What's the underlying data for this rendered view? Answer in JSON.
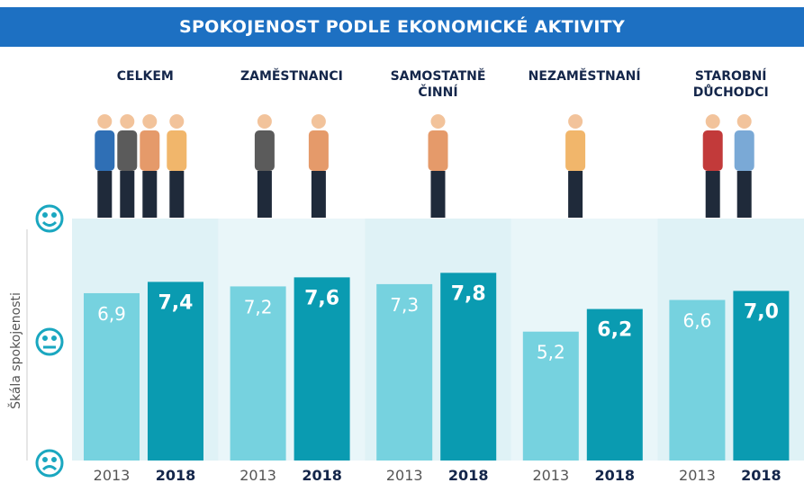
{
  "chart_data": {
    "type": "bar",
    "title": "SPOKOJENOST PODLE EKONOMICKÉ AKTIVITY",
    "y_label": "Škála spokojenosti",
    "categories": [
      "CELKEM",
      "ZAMĚSTNANCI",
      "SAMOSTATNĚ ČINNÍ",
      "NEZAMĚSTNANÍ",
      "STAROBNÍ DŮCHODCI"
    ],
    "series": [
      {
        "name": "2013",
        "color": "#76d2df",
        "values": [
          6.9,
          7.2,
          7.3,
          5.2,
          6.6
        ],
        "value_labels": [
          "6,9",
          "7,2",
          "7,3",
          "5,2",
          "6,6"
        ]
      },
      {
        "name": "2018",
        "color": "#0a9bb1",
        "values": [
          7.4,
          7.6,
          7.8,
          6.2,
          7.0
        ],
        "value_labels": [
          "7,4",
          "7,6",
          "7,8",
          "6,2",
          "7,0"
        ]
      }
    ],
    "ylim": [
      -0.5,
      10.2
    ]
  }
}
